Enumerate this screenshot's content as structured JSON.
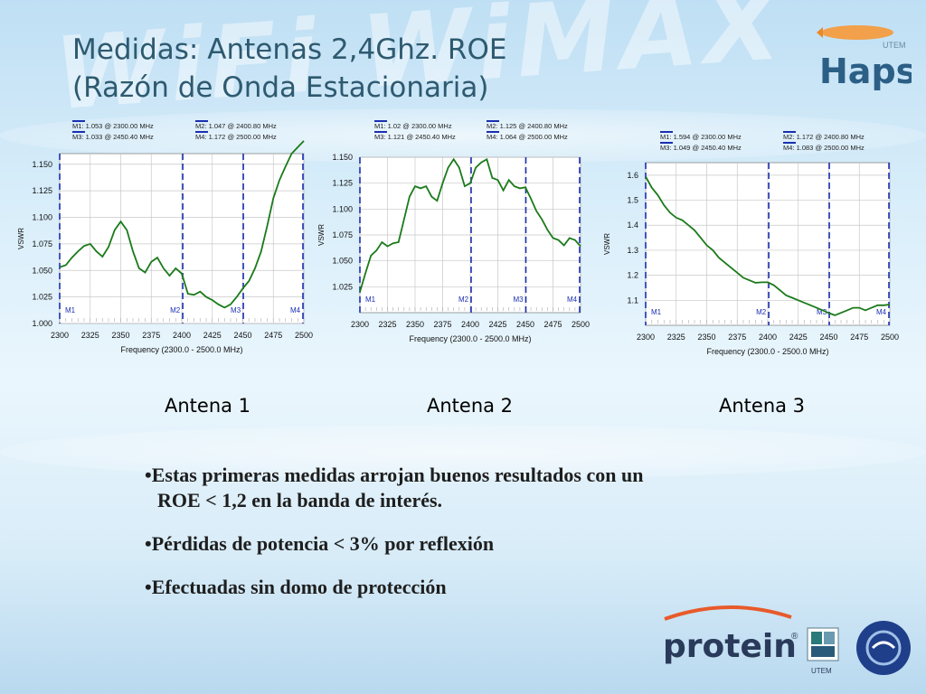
{
  "title_line1": "Medidas: Antenas 2,4Ghz. ROE",
  "title_line2": "(Razón de Onda Estacionaria)",
  "logo_top": {
    "text": "Haps",
    "small": "UTEM"
  },
  "logo_bottom": {
    "text": "protein",
    "reg": "®",
    "utem": "UTEM"
  },
  "antenna_labels": [
    "Antena 1",
    "Antena 2",
    "Antena 3"
  ],
  "bullets": [
    "•Estas primeras medidas arrojan buenos resultados con un",
    "ROE < 1,2 en la banda de interés.",
    "•Pérdidas de potencia < 3% por reflexión",
    "•Efectuadas sin domo de protección"
  ],
  "colors": {
    "line": "#1a7a1a",
    "marker": "#1a2fb0",
    "title": "#2e5a70"
  },
  "chart_data": [
    {
      "type": "line",
      "xlabel": "Frequency (2300.0 - 2500.0 MHz)",
      "ylabel": "VSWR",
      "xlim": [
        2300,
        2500
      ],
      "ylim": [
        1.0,
        1.16
      ],
      "xticks": [
        "2300",
        "2325",
        "2350",
        "2375",
        "2400",
        "2425",
        "2450",
        "2475",
        "2500"
      ],
      "yticks": [
        "1.000",
        "1.025",
        "1.050",
        "1.075",
        "1.100",
        "1.125",
        "1.150"
      ],
      "marker_labels": [
        "M1: 1.053  @ 2300.00 MHz",
        "M3: 1.033  @ 2450.40 MHz",
        "M2: 1.047  @ 2400.80 MHz",
        "M4: 1.172  @ 2500.00 MHz"
      ],
      "markers": [
        {
          "name": "M1",
          "x": 2300
        },
        {
          "name": "M2",
          "x": 2400.8
        },
        {
          "name": "M3",
          "x": 2450.4
        },
        {
          "name": "M4",
          "x": 2500
        }
      ],
      "series": [
        {
          "x": [
            2300,
            2305,
            2310,
            2315,
            2320,
            2325,
            2330,
            2335,
            2340,
            2345,
            2350,
            2355,
            2360,
            2365,
            2370,
            2375,
            2380,
            2385,
            2390,
            2395,
            2400,
            2405,
            2410,
            2415,
            2420,
            2425,
            2430,
            2435,
            2440,
            2445,
            2450,
            2455,
            2460,
            2465,
            2470,
            2475,
            2480,
            2485,
            2490,
            2495,
            2500
          ],
          "values": [
            1.053,
            1.055,
            1.062,
            1.068,
            1.073,
            1.075,
            1.068,
            1.063,
            1.072,
            1.088,
            1.096,
            1.088,
            1.068,
            1.052,
            1.048,
            1.058,
            1.062,
            1.052,
            1.045,
            1.052,
            1.047,
            1.028,
            1.027,
            1.03,
            1.025,
            1.022,
            1.018,
            1.015,
            1.018,
            1.025,
            1.033,
            1.04,
            1.052,
            1.068,
            1.092,
            1.118,
            1.135,
            1.148,
            1.16,
            1.166,
            1.172
          ]
        }
      ]
    },
    {
      "type": "line",
      "xlabel": "Frequency (2300.0 - 2500.0 MHz)",
      "ylabel": "VSWR",
      "xlim": [
        2300,
        2500
      ],
      "ylim": [
        1.0,
        1.15
      ],
      "xticks": [
        "2300",
        "2325",
        "2350",
        "2375",
        "2400",
        "2425",
        "2450",
        "2475",
        "2500"
      ],
      "yticks": [
        "1.025",
        "1.050",
        "1.075",
        "1.100",
        "1.125",
        "1.150"
      ],
      "marker_labels": [
        "M1: 1.02  @ 2300.00 MHz",
        "M3: 1.121  @ 2450.40 MHz",
        "M2: 1.125  @ 2400.80 MHz",
        "M4: 1.064  @ 2500.00 MHz"
      ],
      "markers": [
        {
          "name": "M1",
          "x": 2300
        },
        {
          "name": "M2",
          "x": 2400.8
        },
        {
          "name": "M3",
          "x": 2450.4
        },
        {
          "name": "M4",
          "x": 2500
        }
      ],
      "series": [
        {
          "x": [
            2300,
            2305,
            2310,
            2315,
            2320,
            2325,
            2330,
            2335,
            2340,
            2345,
            2350,
            2355,
            2360,
            2365,
            2370,
            2375,
            2380,
            2385,
            2390,
            2395,
            2400,
            2405,
            2410,
            2415,
            2420,
            2425,
            2430,
            2435,
            2440,
            2445,
            2450,
            2455,
            2460,
            2465,
            2470,
            2475,
            2480,
            2485,
            2490,
            2495,
            2500
          ],
          "values": [
            1.02,
            1.038,
            1.055,
            1.06,
            1.068,
            1.064,
            1.067,
            1.068,
            1.09,
            1.112,
            1.122,
            1.12,
            1.122,
            1.112,
            1.108,
            1.125,
            1.14,
            1.148,
            1.14,
            1.122,
            1.125,
            1.14,
            1.145,
            1.148,
            1.13,
            1.128,
            1.118,
            1.128,
            1.122,
            1.12,
            1.121,
            1.11,
            1.098,
            1.09,
            1.08,
            1.072,
            1.07,
            1.065,
            1.072,
            1.07,
            1.064
          ]
        }
      ]
    },
    {
      "type": "line",
      "xlabel": "Frequency (2300.0 - 2500.0 MHz)",
      "ylabel": "VSWR",
      "xlim": [
        2300,
        2500
      ],
      "ylim": [
        1.0,
        1.65
      ],
      "xticks": [
        "2300",
        "2325",
        "2350",
        "2375",
        "2400",
        "2425",
        "2450",
        "2475",
        "2500"
      ],
      "yticks": [
        "1.1",
        "1.2",
        "1.3",
        "1.4",
        "1.5",
        "1.6"
      ],
      "marker_labels": [
        "M1: 1.594  @ 2300.00 MHz",
        "M3: 1.049  @ 2450.40 MHz",
        "M2: 1.172  @ 2400.80 MHz",
        "M4: 1.083  @ 2500.00 MHz"
      ],
      "markers": [
        {
          "name": "M1",
          "x": 2300
        },
        {
          "name": "M2",
          "x": 2400.8
        },
        {
          "name": "M3",
          "x": 2450.4
        },
        {
          "name": "M4",
          "x": 2500
        }
      ],
      "series": [
        {
          "x": [
            2300,
            2305,
            2310,
            2315,
            2320,
            2325,
            2330,
            2335,
            2340,
            2345,
            2350,
            2355,
            2360,
            2365,
            2370,
            2375,
            2380,
            2385,
            2390,
            2395,
            2400,
            2405,
            2410,
            2415,
            2420,
            2425,
            2430,
            2435,
            2440,
            2445,
            2450,
            2455,
            2460,
            2465,
            2470,
            2475,
            2480,
            2485,
            2490,
            2495,
            2500
          ],
          "values": [
            1.594,
            1.55,
            1.52,
            1.48,
            1.45,
            1.43,
            1.42,
            1.4,
            1.38,
            1.35,
            1.32,
            1.3,
            1.27,
            1.25,
            1.23,
            1.21,
            1.19,
            1.18,
            1.17,
            1.172,
            1.172,
            1.16,
            1.14,
            1.12,
            1.11,
            1.1,
            1.09,
            1.08,
            1.07,
            1.06,
            1.049,
            1.04,
            1.05,
            1.06,
            1.07,
            1.07,
            1.06,
            1.07,
            1.08,
            1.08,
            1.083
          ]
        }
      ]
    }
  ]
}
